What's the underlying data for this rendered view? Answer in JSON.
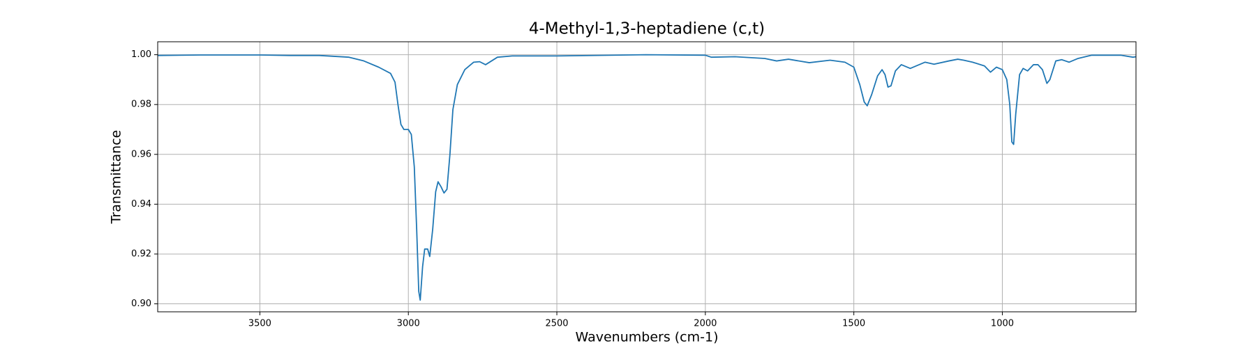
{
  "chart_data": {
    "type": "line",
    "title": "4-Methyl-1,3-heptadiene (c,t)",
    "x_label": "Wavenumbers (cm-1)",
    "y_label": "Transmittance",
    "grid": true,
    "xlim": [
      3844,
      550
    ],
    "ylim": [
      0.8968,
      1.0052
    ],
    "xticks": [
      3500,
      3000,
      2500,
      2000,
      1500,
      1000
    ],
    "yticks": [
      {
        "value": 0.9,
        "label": "0.90"
      },
      0.92,
      0.94,
      0.96,
      0.98,
      {
        "value": 1,
        "label": "1.00"
      }
    ],
    "x": [
      3844,
      3700,
      3500,
      3400,
      3300,
      3200,
      3150,
      3100,
      3060,
      3045,
      3035,
      3025,
      3015,
      3000,
      2990,
      2980,
      2972,
      2965,
      2960,
      2952,
      2945,
      2935,
      2928,
      2918,
      2908,
      2900,
      2890,
      2880,
      2870,
      2860,
      2850,
      2835,
      2810,
      2780,
      2760,
      2740,
      2720,
      2700,
      2650,
      2500,
      2200,
      2000,
      1980,
      1900,
      1800,
      1760,
      1720,
      1650,
      1580,
      1530,
      1500,
      1480,
      1465,
      1455,
      1440,
      1420,
      1405,
      1395,
      1385,
      1375,
      1360,
      1340,
      1310,
      1290,
      1260,
      1230,
      1180,
      1150,
      1130,
      1100,
      1060,
      1040,
      1020,
      1000,
      985,
      975,
      968,
      962,
      955,
      942,
      930,
      915,
      895,
      880,
      865,
      850,
      840,
      820,
      800,
      775,
      745,
      700,
      600,
      560,
      550
    ],
    "series": [
      {
        "color": "#1f77b4",
        "values": [
          0.9997,
          0.9999,
          0.9999,
          0.9997,
          0.9997,
          0.999,
          0.9975,
          0.995,
          0.9925,
          0.989,
          0.98,
          0.972,
          0.97,
          0.97,
          0.968,
          0.955,
          0.93,
          0.905,
          0.9015,
          0.915,
          0.922,
          0.922,
          0.919,
          0.93,
          0.945,
          0.949,
          0.947,
          0.9445,
          0.946,
          0.96,
          0.978,
          0.988,
          0.994,
          0.997,
          0.9972,
          0.996,
          0.9975,
          0.999,
          0.9995,
          0.9995,
          1.0,
          0.9998,
          0.999,
          0.9992,
          0.9985,
          0.9975,
          0.9982,
          0.9968,
          0.9978,
          0.997,
          0.995,
          0.988,
          0.981,
          0.9795,
          0.984,
          0.9915,
          0.994,
          0.992,
          0.987,
          0.9875,
          0.9935,
          0.996,
          0.9945,
          0.9955,
          0.997,
          0.9962,
          0.9975,
          0.9982,
          0.9978,
          0.997,
          0.9955,
          0.993,
          0.995,
          0.994,
          0.99,
          0.98,
          0.965,
          0.964,
          0.976,
          0.992,
          0.9945,
          0.9935,
          0.996,
          0.996,
          0.994,
          0.9885,
          0.99,
          0.9975,
          0.998,
          0.997,
          0.9985,
          0.9998,
          0.9998,
          0.999,
          0.9992
        ]
      }
    ]
  }
}
